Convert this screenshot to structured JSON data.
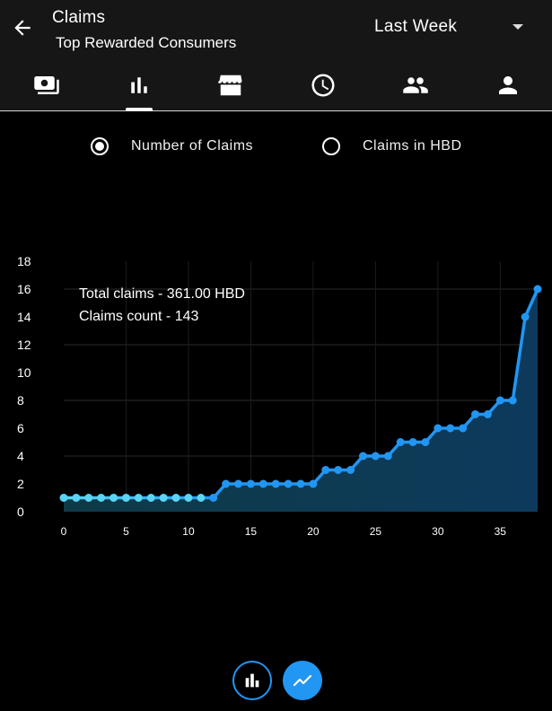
{
  "header": {
    "title": "Claims",
    "subtitle": "Top Rewarded Consumers",
    "period": "Last Week"
  },
  "tabs": [
    {
      "icon": "money-icon"
    },
    {
      "icon": "bar-chart-icon",
      "selected": true
    },
    {
      "icon": "store-icon"
    },
    {
      "icon": "clock-icon"
    },
    {
      "icon": "people-icon"
    },
    {
      "icon": "person-icon"
    }
  ],
  "options": {
    "number_of_claims": "Number of Claims",
    "claims_in_hbd": "Claims in HBD",
    "selected": "number_of_claims"
  },
  "summary": {
    "total_claims": "Total claims - 361.00 HBD",
    "claims_count": "Claims count - 143"
  },
  "chart_data": {
    "type": "area",
    "x": [
      0,
      1,
      2,
      3,
      4,
      5,
      6,
      7,
      8,
      9,
      10,
      11,
      12,
      13,
      14,
      15,
      16,
      17,
      18,
      19,
      20,
      21,
      22,
      23,
      24,
      25,
      26,
      27,
      28,
      29,
      30,
      31,
      32,
      33,
      34,
      35,
      36,
      37,
      38
    ],
    "y": [
      1,
      1,
      1,
      1,
      1,
      1,
      1,
      1,
      1,
      1,
      1,
      1,
      1,
      2,
      2,
      2,
      2,
      2,
      2,
      2,
      2,
      3,
      3,
      3,
      4,
      4,
      4,
      5,
      5,
      5,
      6,
      6,
      6,
      7,
      7,
      8,
      8,
      14,
      16
    ],
    "xticks": [
      0,
      5,
      10,
      15,
      20,
      25,
      30,
      35
    ],
    "yticks": [
      0,
      2,
      4,
      6,
      8,
      10,
      12,
      14,
      16,
      18
    ],
    "xlim": [
      0,
      38
    ],
    "ylim": [
      0,
      18
    ],
    "grid": true,
    "colors": {
      "line_start": "#5ad4f5",
      "line_end": "#2196f3",
      "fill": "#0d3a5c"
    }
  },
  "view_toggle": {
    "bar_icon": "bar-chart-icon",
    "line_icon": "line-chart-icon",
    "selected": "line",
    "accent": "#2196f3"
  }
}
